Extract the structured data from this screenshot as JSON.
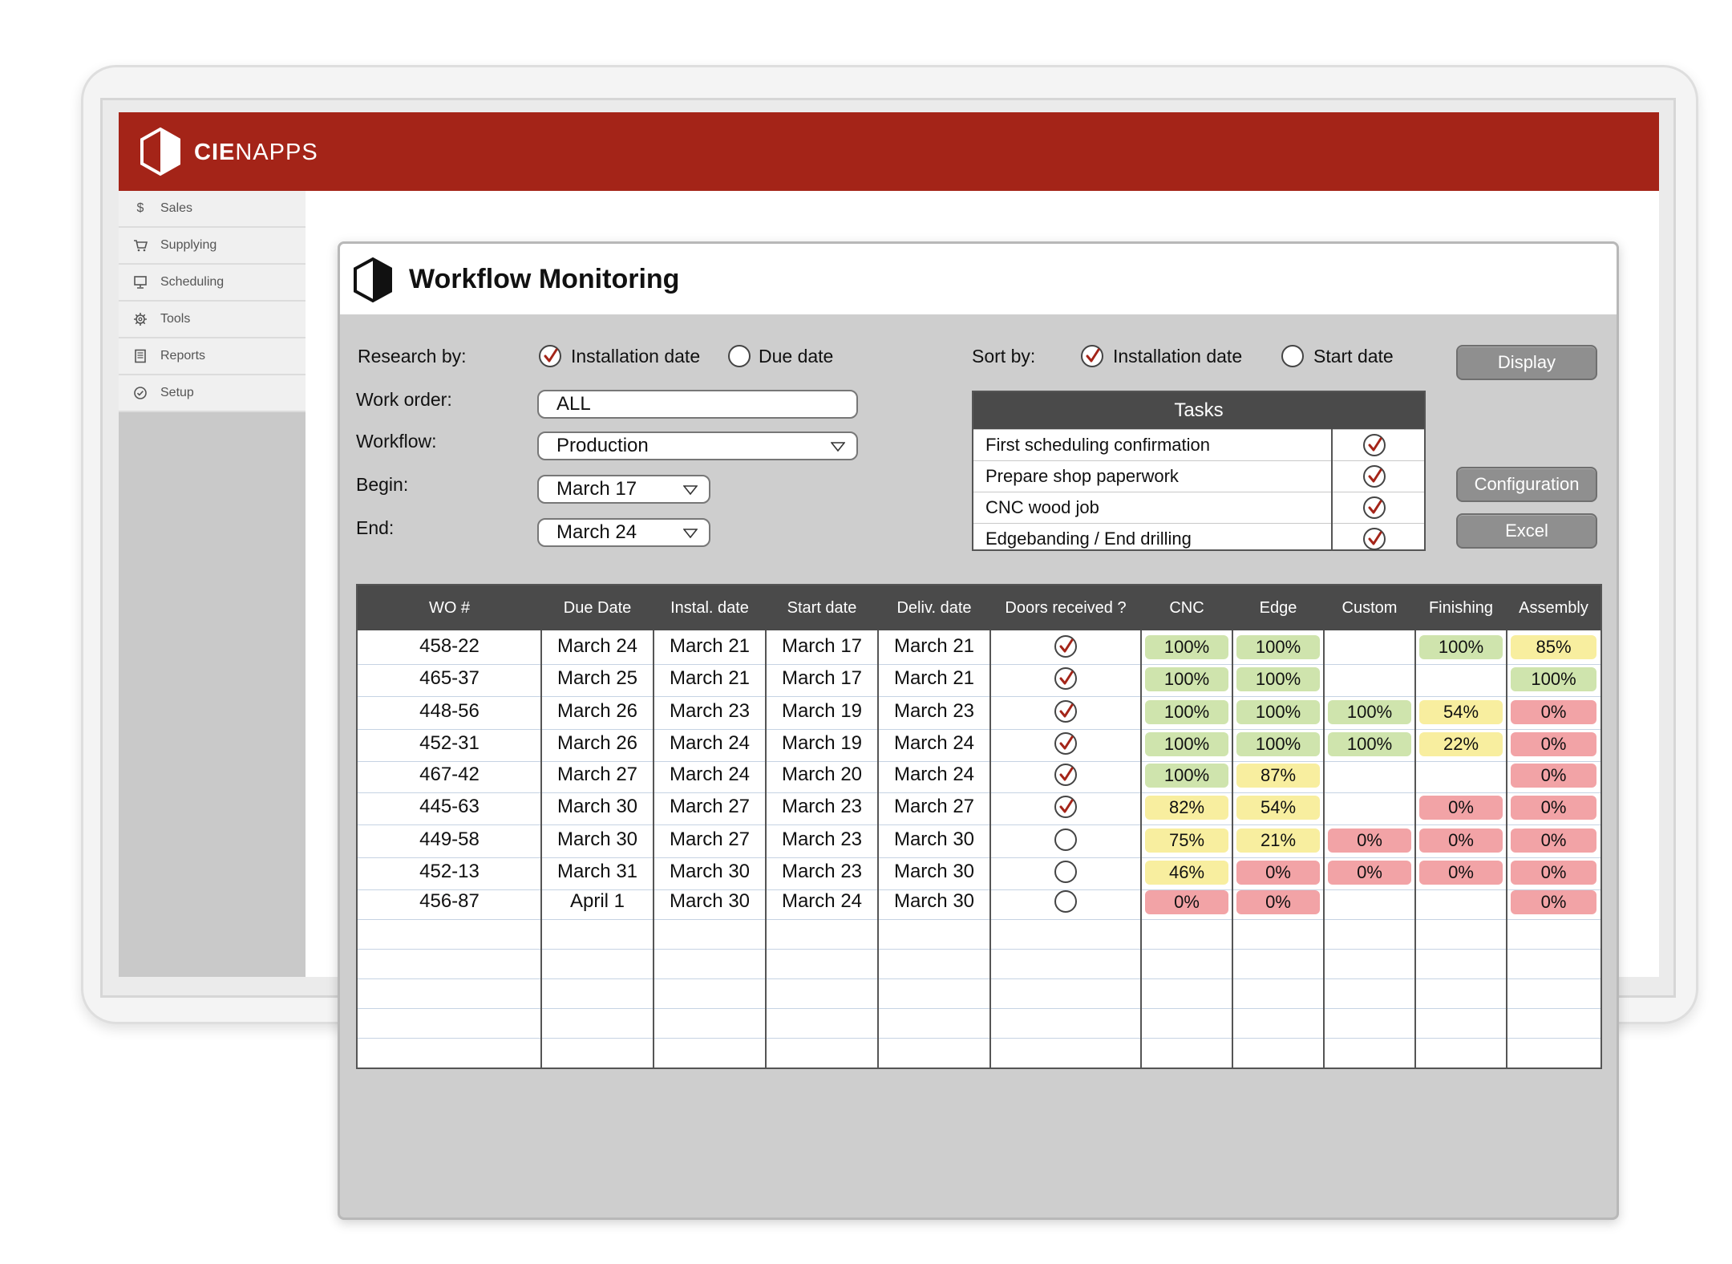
{
  "colors": {
    "header_red": "#a42418",
    "check_red": "#a42418",
    "pill_green": "#cfe4ad",
    "pill_yellow": "#f8ee9f",
    "pill_red": "#f2a3a6",
    "table_header": "#4a4a4a"
  },
  "app": {
    "brand_bold": "CIE",
    "brand_rest": "NAPPS",
    "logo_icon": "hexagon-cube-icon"
  },
  "sidebar": {
    "items": [
      {
        "label": "Sales",
        "icon": "dollar-icon"
      },
      {
        "label": "Supplying",
        "icon": "cart-icon"
      },
      {
        "label": "Scheduling",
        "icon": "monitor-icon"
      },
      {
        "label": "Tools",
        "icon": "gear-icon"
      },
      {
        "label": "Reports",
        "icon": "document-icon"
      },
      {
        "label": "Setup",
        "icon": "check-circle-icon"
      }
    ]
  },
  "modal": {
    "title": "Workflow Monitoring",
    "research_label": "Research by:",
    "research_options": [
      {
        "label": "Installation date",
        "checked": true
      },
      {
        "label": "Due date",
        "checked": false
      }
    ],
    "sort_label": "Sort by:",
    "sort_options": [
      {
        "label": "Installation date",
        "checked": true
      },
      {
        "label": "Start date",
        "checked": false
      }
    ],
    "work_order_label": "Work order:",
    "work_order_value": "ALL",
    "workflow_label": "Workflow:",
    "workflow_value": "Production",
    "begin_label": "Begin:",
    "begin_value": "March 17",
    "end_label": "End:",
    "end_value": "March 24",
    "buttons": {
      "display": "Display",
      "configuration": "Configuration",
      "excel": "Excel"
    },
    "tasks": {
      "title": "Tasks",
      "items": [
        {
          "label": "First scheduling confirmation",
          "checked": true
        },
        {
          "label": "Prepare shop paperwork",
          "checked": true
        },
        {
          "label": "CNC wood job",
          "checked": true
        },
        {
          "label": "Edgebanding / End drilling",
          "checked": true
        }
      ]
    }
  },
  "table": {
    "columns": [
      "WO #",
      "Due Date",
      "Instal. date",
      "Start date",
      "Deliv. date",
      "Doors received ?",
      "CNC",
      "Edge",
      "Custom",
      "Finishing",
      "Assembly"
    ],
    "rows": [
      {
        "wo": "458-22",
        "due": "March 24",
        "instal": "March 21",
        "start": "March 17",
        "deliv": "March 21",
        "doors": true,
        "stages": [
          {
            "v": "100%",
            "c": "green"
          },
          {
            "v": "100%",
            "c": "green"
          },
          null,
          {
            "v": "100%",
            "c": "green"
          },
          {
            "v": "85%",
            "c": "yellow"
          }
        ]
      },
      {
        "wo": "465-37",
        "due": "March 25",
        "instal": "March 21",
        "start": "March 17",
        "deliv": "March 21",
        "doors": true,
        "stages": [
          {
            "v": "100%",
            "c": "green"
          },
          {
            "v": "100%",
            "c": "green"
          },
          null,
          null,
          {
            "v": "100%",
            "c": "green"
          }
        ]
      },
      {
        "wo": "448-56",
        "due": "March 26",
        "instal": "March 23",
        "start": "March 19",
        "deliv": "March 23",
        "doors": true,
        "stages": [
          {
            "v": "100%",
            "c": "green"
          },
          {
            "v": "100%",
            "c": "green"
          },
          {
            "v": "100%",
            "c": "green"
          },
          {
            "v": "54%",
            "c": "yellow"
          },
          {
            "v": "0%",
            "c": "red"
          }
        ]
      },
      {
        "wo": "452-31",
        "due": "March 26",
        "instal": "March 24",
        "start": "March 19",
        "deliv": "March 24",
        "doors": true,
        "stages": [
          {
            "v": "100%",
            "c": "green"
          },
          {
            "v": "100%",
            "c": "green"
          },
          {
            "v": "100%",
            "c": "green"
          },
          {
            "v": "22%",
            "c": "yellow"
          },
          {
            "v": "0%",
            "c": "red"
          }
        ]
      },
      {
        "wo": "467-42",
        "due": "March 27",
        "instal": "March 24",
        "start": "March 20",
        "deliv": "March 24",
        "doors": true,
        "stages": [
          {
            "v": "100%",
            "c": "green"
          },
          {
            "v": "87%",
            "c": "yellow"
          },
          null,
          null,
          {
            "v": "0%",
            "c": "red"
          }
        ]
      },
      {
        "wo": "445-63",
        "due": "March 30",
        "instal": "March 27",
        "start": "March 23",
        "deliv": "March 27",
        "doors": true,
        "stages": [
          {
            "v": "82%",
            "c": "yellow"
          },
          {
            "v": "54%",
            "c": "yellow"
          },
          null,
          {
            "v": "0%",
            "c": "red"
          },
          {
            "v": "0%",
            "c": "red"
          }
        ]
      },
      {
        "wo": "449-58",
        "due": "March 30",
        "instal": "March 27",
        "start": "March 23",
        "deliv": "March 30",
        "doors": false,
        "stages": [
          {
            "v": "75%",
            "c": "yellow"
          },
          {
            "v": "21%",
            "c": "yellow"
          },
          {
            "v": "0%",
            "c": "red"
          },
          {
            "v": "0%",
            "c": "red"
          },
          {
            "v": "0%",
            "c": "red"
          }
        ]
      },
      {
        "wo": "452-13",
        "due": "March 31",
        "instal": "March 30",
        "start": "March 23",
        "deliv": "March 30",
        "doors": false,
        "stages": [
          {
            "v": "46%",
            "c": "yellow"
          },
          {
            "v": "0%",
            "c": "red"
          },
          {
            "v": "0%",
            "c": "red"
          },
          {
            "v": "0%",
            "c": "red"
          },
          {
            "v": "0%",
            "c": "red"
          }
        ]
      },
      {
        "wo": "456-87",
        "due": "April 1",
        "instal": "March 30",
        "start": "March 24",
        "deliv": "March 30",
        "doors": false,
        "stages": [
          {
            "v": "0%",
            "c": "red"
          },
          {
            "v": "0%",
            "c": "red"
          },
          null,
          null,
          {
            "v": "0%",
            "c": "red"
          }
        ]
      }
    ]
  }
}
